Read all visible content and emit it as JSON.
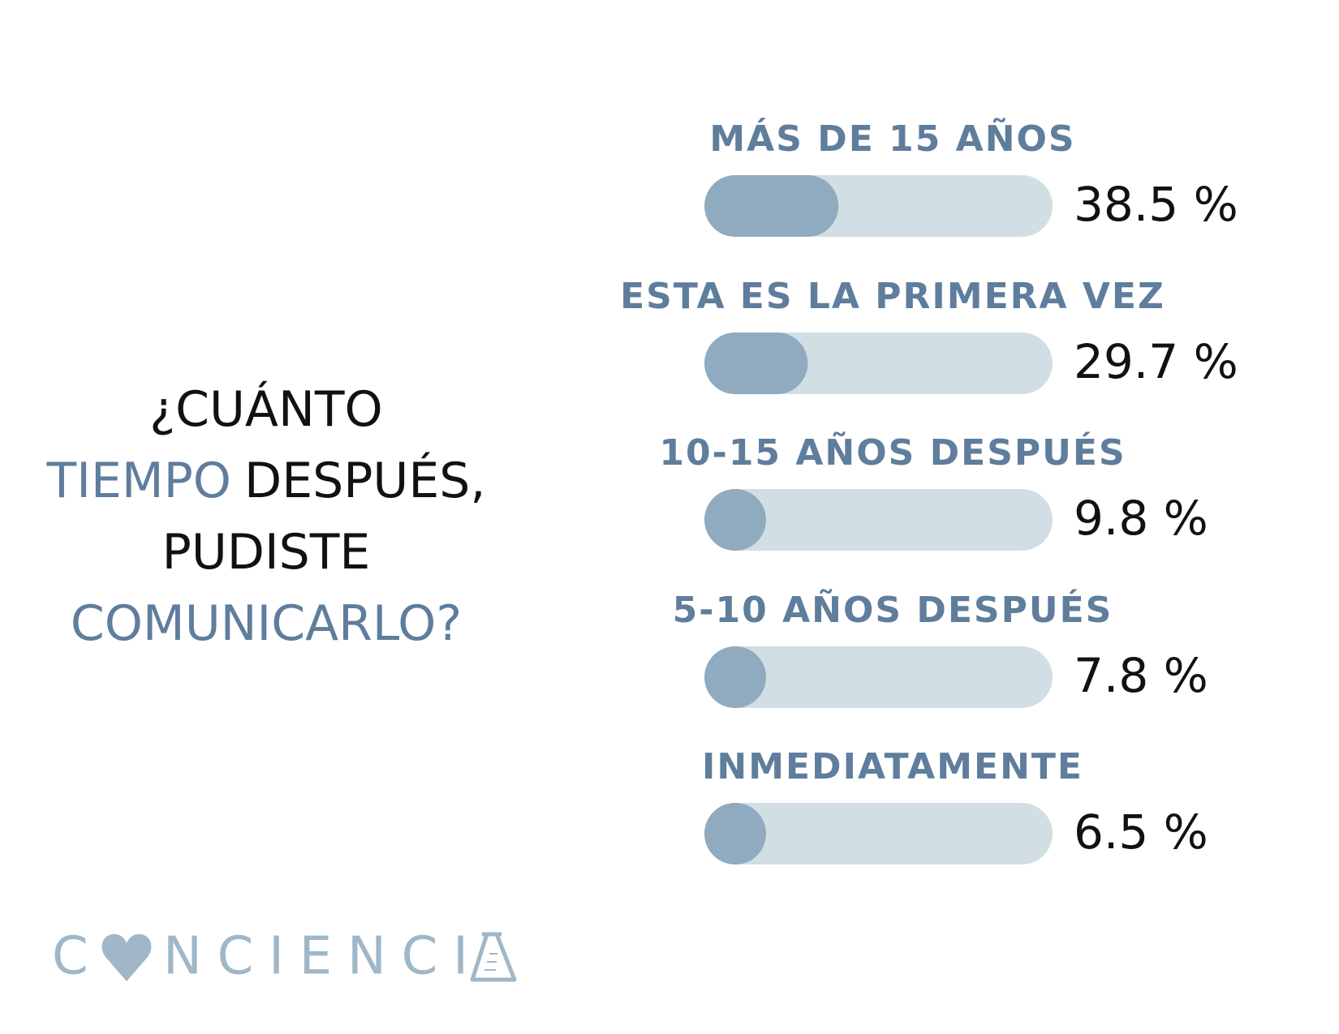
{
  "chart_data": {
    "type": "bar",
    "orientation": "horizontal",
    "title": [
      [
        {
          "text": "¿CUÁNTO",
          "color": "#111111"
        }
      ],
      [
        {
          "text": "TIEMPO",
          "color": "#5f7d9c"
        },
        {
          "text": "DESPUÉS,",
          "color": "#111111"
        }
      ],
      [
        {
          "text": "PUDISTE",
          "color": "#111111"
        }
      ],
      [
        {
          "text": "COMUNICARLO?",
          "color": "#5f7d9c"
        }
      ]
    ],
    "categories": [
      "MÁS DE 15 AÑOS",
      "ESTA ES LA PRIMERA VEZ",
      "10-15 AÑOS DESPUÉS",
      "5-10 AÑOS DESPUÉS",
      "INMEDIATAMENTE"
    ],
    "values": [
      38.5,
      29.7,
      9.8,
      7.8,
      6.5
    ],
    "value_labels": [
      "38.5 %",
      "29.7 %",
      "9.8 %",
      "7.8 %",
      "6.5 %"
    ],
    "xlim": [
      0,
      100
    ],
    "color": "#90abbf",
    "track_color": "#d1dee4",
    "label_color": "#5f7d9c",
    "logo": {
      "parts": [
        "C",
        "NCIENCI"
      ],
      "color": "#9fb7c8"
    }
  }
}
